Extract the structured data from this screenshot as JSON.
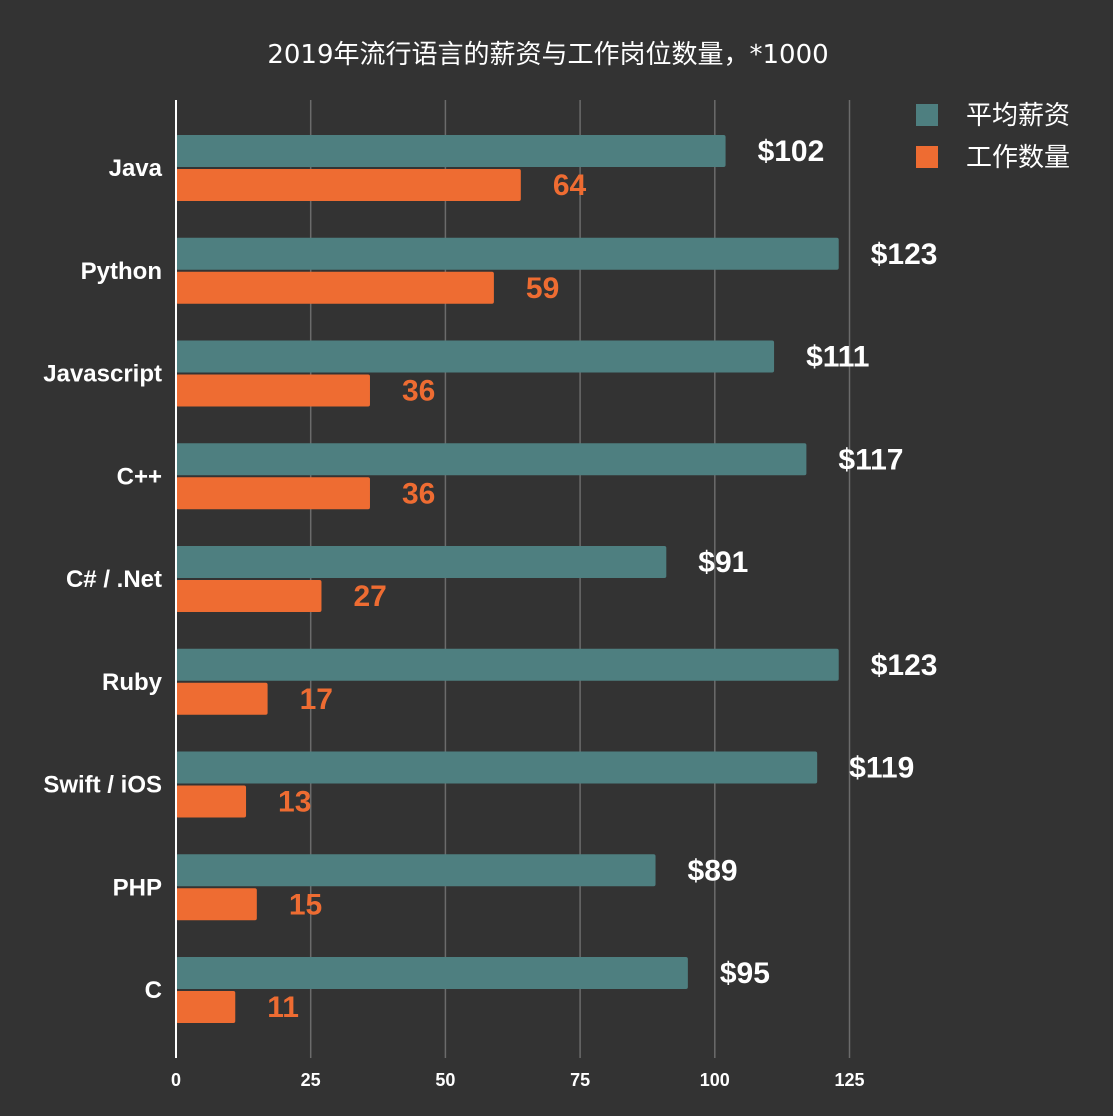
{
  "chart_data": {
    "type": "bar",
    "orientation": "horizontal",
    "title": "2019年流行语言的薪资与工作岗位数量，*1000",
    "categories": [
      "Java",
      "Python",
      "Javascript",
      "C++",
      "C# / .Net",
      "Ruby",
      "Swift / iOS",
      "PHP",
      "C"
    ],
    "series": [
      {
        "name": "平均薪资",
        "color": "#4e7f80",
        "values": [
          102,
          123,
          111,
          117,
          91,
          123,
          119,
          89,
          95
        ],
        "labels": [
          "$102",
          "$123",
          "$111",
          "$117",
          "$91",
          "$123",
          "$119",
          "$89",
          "$95"
        ],
        "label_color": "#ffffff"
      },
      {
        "name": "工作数量",
        "color": "#ee6c32",
        "values": [
          64,
          59,
          36,
          36,
          27,
          17,
          13,
          15,
          11
        ],
        "labels": [
          "64",
          "59",
          "36",
          "36",
          "27",
          "17",
          "13",
          "15",
          "11"
        ],
        "label_color": "#ee6c32"
      }
    ],
    "xlim": [
      0,
      130
    ],
    "xticks": [
      0,
      25,
      50,
      75,
      100,
      125
    ],
    "grid": true,
    "legend_position": "top-right",
    "background": "#333333"
  }
}
